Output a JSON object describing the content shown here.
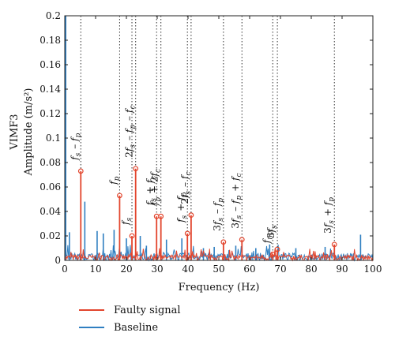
{
  "chart_data": {
    "type": "line",
    "xlabel": "Frequency (Hz)",
    "ylabel_line1": "VIMF3",
    "ylabel_line2": "Amplitude (m/s²)",
    "xlim": [
      0,
      100
    ],
    "ylim": [
      0,
      0.2
    ],
    "x_ticks": [
      0,
      10,
      20,
      30,
      40,
      50,
      60,
      70,
      80,
      90,
      100
    ],
    "y_ticks": [
      0,
      0.02,
      0.04,
      0.06,
      0.08,
      0.1,
      0.12,
      0.14,
      0.16,
      0.18,
      0.2
    ],
    "x_tick_labels": [
      "0",
      "10",
      "20",
      "30",
      "40",
      "50",
      "60",
      "70",
      "80",
      "90",
      "100"
    ],
    "y_tick_labels": [
      "0",
      "0.02",
      "0.04",
      "0.06",
      "0.08",
      "0.1",
      "0.12",
      "0.14",
      "0.16",
      "0.18",
      "0.2"
    ],
    "series": [
      {
        "name": "Faulty signal",
        "color": "#e2452d",
        "peaks": [
          {
            "x": 5.2,
            "y": 0.073
          },
          {
            "x": 17.8,
            "y": 0.053
          },
          {
            "x": 21.8,
            "y": 0.02
          },
          {
            "x": 23.0,
            "y": 0.075
          },
          {
            "x": 29.8,
            "y": 0.036
          },
          {
            "x": 31.2,
            "y": 0.036
          },
          {
            "x": 39.8,
            "y": 0.022
          },
          {
            "x": 41.0,
            "y": 0.037
          },
          {
            "x": 51.5,
            "y": 0.015
          },
          {
            "x": 57.5,
            "y": 0.017
          },
          {
            "x": 67.5,
            "y": 0.005
          },
          {
            "x": 69.0,
            "y": 0.009
          },
          {
            "x": 87.5,
            "y": 0.013
          }
        ]
      },
      {
        "name": "Baseline",
        "color": "#2f7fc1",
        "peaks": [
          {
            "x": 0.3,
            "y": 0.2
          },
          {
            "x": 1.5,
            "y": 0.023
          },
          {
            "x": 6.5,
            "y": 0.048
          },
          {
            "x": 10.5,
            "y": 0.024
          },
          {
            "x": 12.5,
            "y": 0.022
          },
          {
            "x": 16.0,
            "y": 0.025
          },
          {
            "x": 20.0,
            "y": 0.018
          },
          {
            "x": 24.5,
            "y": 0.02
          },
          {
            "x": 26.5,
            "y": 0.012
          },
          {
            "x": 33.0,
            "y": 0.017
          },
          {
            "x": 38.0,
            "y": 0.018
          },
          {
            "x": 45.0,
            "y": 0.01
          },
          {
            "x": 48.5,
            "y": 0.011
          },
          {
            "x": 55.5,
            "y": 0.012
          },
          {
            "x": 62.0,
            "y": 0.01
          },
          {
            "x": 66.5,
            "y": 0.013
          },
          {
            "x": 75.0,
            "y": 0.01
          },
          {
            "x": 84.5,
            "y": 0.011
          },
          {
            "x": 96.0,
            "y": 0.021
          }
        ]
      }
    ],
    "annotations": [
      {
        "x": 5.2,
        "label": "f_s - f_p"
      },
      {
        "x": 17.8,
        "label": "f_p"
      },
      {
        "x": 21.8,
        "label": "f_s"
      },
      {
        "x": 23.0,
        "label": "2f_s - f_p - f_c"
      },
      {
        "x": 29.8,
        "label": "f_s + f_c"
      },
      {
        "x": 31.2,
        "label": "f_p + 2f_c"
      },
      {
        "x": 39.8,
        "label": "f_s + f_p"
      },
      {
        "x": 41.0,
        "label": "2f_s - f_c"
      },
      {
        "x": 51.5,
        "label": "3f_s - f_p"
      },
      {
        "x": 57.5,
        "label": "3f_s - f_p + f_c"
      },
      {
        "x": 67.5,
        "label": "f_mx"
      },
      {
        "x": 69.0,
        "label": "3f_s"
      },
      {
        "x": 87.5,
        "label": "3f_s + f_p"
      }
    ],
    "legend": {
      "placement": "below",
      "entries": [
        "Faulty signal",
        "Baseline"
      ]
    }
  }
}
